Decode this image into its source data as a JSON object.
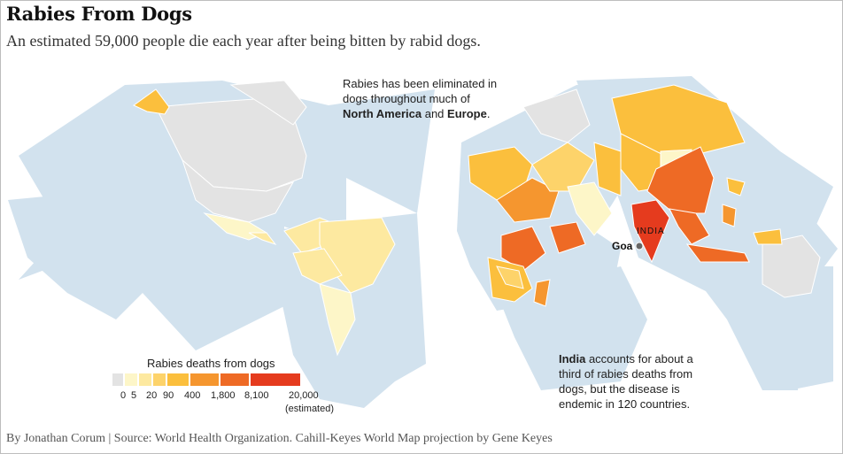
{
  "title": "Rabies From Dogs",
  "subtitle": "An estimated 59,000 people die each year after being bitten by rabid dogs.",
  "note_top": {
    "line1": "Rabies has been eliminated in",
    "line2": "dogs throughout much of",
    "region1": "North America",
    "and": " and ",
    "region2": "Europe",
    "end": "."
  },
  "note_india": {
    "bold": "India",
    "line1_rest": " accounts for about a",
    "line2": "third of rabies deaths from",
    "line3": "dogs, but the disease is",
    "line4": "endemic in 120 countries."
  },
  "map_labels": {
    "india": "INDIA",
    "goa": "Goa"
  },
  "legend": {
    "title": "Rabies deaths from dogs",
    "ticks": [
      "0",
      "5",
      "20",
      "90",
      "400",
      "1,800",
      "8,100",
      "20,000"
    ],
    "tick_note": "(estimated)",
    "colors": [
      "#e3e3e3",
      "#fdf6c8",
      "#fde9a0",
      "#fdd36a",
      "#fbbf3d",
      "#f5962f",
      "#ee6a25",
      "#e53b1e"
    ]
  },
  "colors": {
    "ocean": "#d2e2ee",
    "no_data": "#e3e3e3",
    "goa_marker": "#666666"
  },
  "credit": "By Jonathan Corum | Source: World Health Organization. Cahill-Keyes World Map projection by Gene Keyes"
}
